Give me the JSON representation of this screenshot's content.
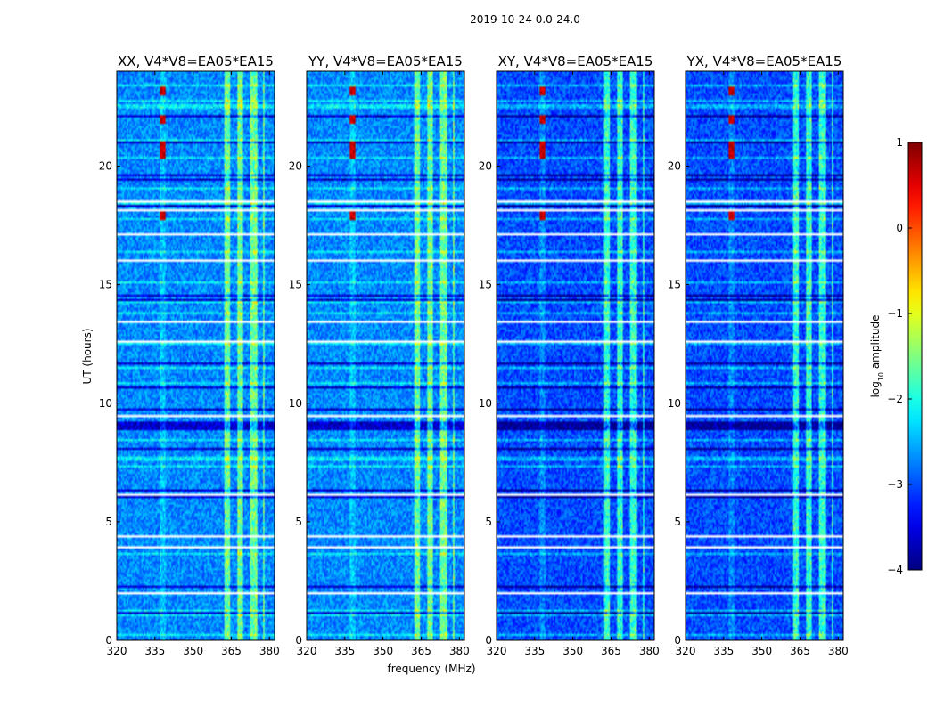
{
  "chart_data": {
    "type": "heatmap",
    "suptitle": "2019-10-24 0.0-24.0",
    "xlabel": "frequency (MHz)",
    "ylabel": "UT (hours)",
    "xlim": [
      320,
      382
    ],
    "ylim": [
      0,
      24
    ],
    "x_ticks": [
      "320",
      "335",
      "350",
      "365",
      "380"
    ],
    "x_tick_values": [
      320,
      335,
      350,
      365,
      380
    ],
    "y_ticks": [
      "0",
      "5",
      "10",
      "15",
      "20"
    ],
    "y_tick_values": [
      0,
      5,
      10,
      15,
      20
    ],
    "panels": [
      {
        "title": "XX, V4*V8=EA05*EA15",
        "polarization": "XX",
        "baseline": "V4*V8=EA05*EA15"
      },
      {
        "title": "YY, V4*V8=EA05*EA15",
        "polarization": "YY",
        "baseline": "V4*V8=EA05*EA15"
      },
      {
        "title": "XY, V4*V8=EA05*EA15",
        "polarization": "XY",
        "baseline": "V4*V8=EA05*EA15"
      },
      {
        "title": "YX, V4*V8=EA05*EA15",
        "polarization": "YX",
        "baseline": "V4*V8=EA05*EA15"
      }
    ],
    "colorbar": {
      "label": "log10 amplitude",
      "label_main": "log",
      "label_sub": "10",
      "label_rest": " amplitude",
      "range": [
        -4,
        1
      ],
      "ticks": [
        "1",
        "0",
        "−1",
        "−2",
        "−3",
        "−4"
      ],
      "tick_values": [
        1,
        0,
        -1,
        -2,
        -3,
        -4
      ],
      "colormap": "jet"
    },
    "features": {
      "rfi_band_mhz": [
        362,
        378
      ],
      "bright_line_mhz": 338,
      "bright_times_ut": [
        23.2,
        22.0,
        20.9,
        20.5,
        17.9
      ]
    }
  }
}
